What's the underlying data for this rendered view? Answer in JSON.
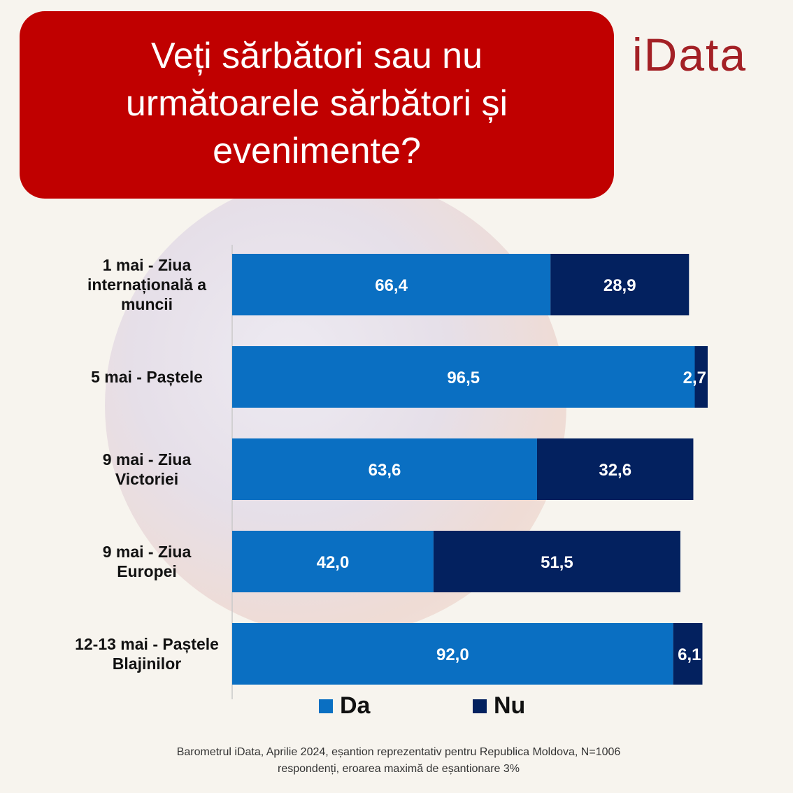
{
  "header": {
    "title": "Veți sărbători sau nu următoarele sărbători și evenimente?"
  },
  "logo": {
    "text": "iData"
  },
  "colors": {
    "da": "#0a6fc2",
    "nu": "#03215f",
    "title_bg": "#c00000",
    "logo": "#a32025"
  },
  "chart_data": {
    "type": "bar",
    "orientation": "horizontal",
    "stacked": true,
    "categories": [
      [
        "1 mai - Ziua",
        "internațională a",
        "muncii"
      ],
      [
        "5 mai - Paștele"
      ],
      [
        "9 mai - Ziua",
        "Victoriei"
      ],
      [
        "9 mai - Ziua",
        "Europei"
      ],
      [
        "12-13 mai - Paștele",
        "Blajinilor"
      ]
    ],
    "series": [
      {
        "name": "Da",
        "values": [
          66.4,
          96.5,
          63.6,
          42.0,
          92.0
        ],
        "labels": [
          "66,4",
          "96,5",
          "63,6",
          "42,0",
          "92,0"
        ]
      },
      {
        "name": "Nu",
        "values": [
          28.9,
          2.7,
          32.6,
          51.5,
          6.1
        ],
        "labels": [
          "28,9",
          "2,7",
          "32,6",
          "51,5",
          "6,1"
        ]
      }
    ],
    "legend_position": "bottom"
  },
  "legend": {
    "da": "Da",
    "nu": "Nu"
  },
  "footnote": {
    "line1": "Barometrul iData, Aprilie 2024, eșantion reprezentativ pentru Republica Moldova, N=1006",
    "line2": "respondenți, eroarea maximă de eșantionare 3%"
  }
}
